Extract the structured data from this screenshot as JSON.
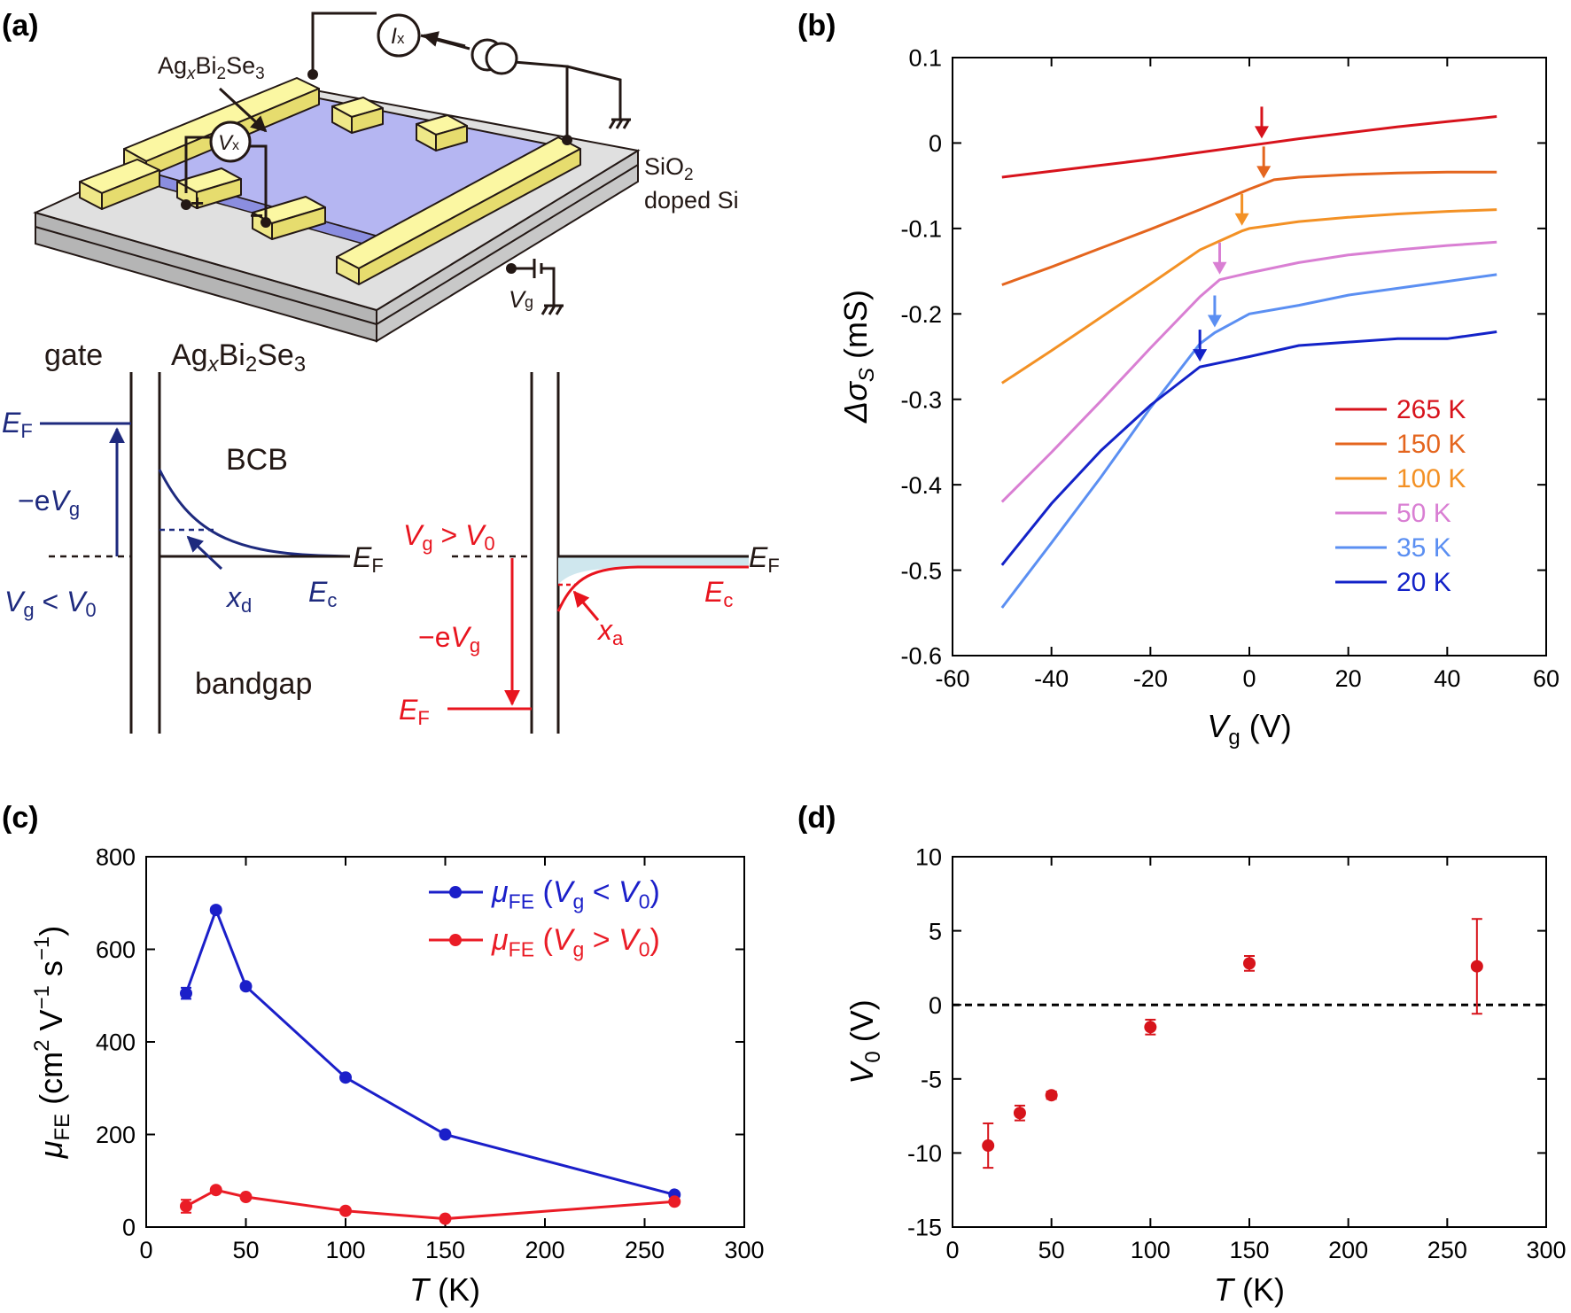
{
  "panel_labels": [
    "(a)",
    "(b)",
    "(c)",
    "(d)"
  ],
  "diagram": {
    "material": "AgₓBi₂Se₃",
    "material_parts": [
      "Ag",
      "x",
      "Bi",
      "2",
      "Se",
      "3"
    ],
    "sio2": "SiO₂",
    "sio2_parts": [
      "SiO",
      "2"
    ],
    "doped_si": "doped Si",
    "ix": "Ix",
    "ix_parts": [
      "I",
      "x"
    ],
    "vx": "Vx",
    "vx_parts": [
      "V",
      "x"
    ],
    "vg": "Vg",
    "vg_parts": [
      "V",
      "g"
    ],
    "plus": "+",
    "minus": "−",
    "gate": "gate",
    "bcb": "BCB",
    "bandgap": "bandgap",
    "ef": "EF",
    "ef_parts": [
      "E",
      "F"
    ],
    "ec": "Ec",
    "ec_parts": [
      "E",
      "c"
    ],
    "neg_evg": "−eVg",
    "neg_evg_parts": [
      "−e",
      "V",
      "g"
    ],
    "vg_lt_v0": "Vg < V0",
    "vg_lt_v0_parts": [
      "V",
      "g",
      " < ",
      "V",
      "0"
    ],
    "vg_gt_v0": "Vg > V0",
    "vg_gt_v0_parts": [
      "V",
      "g",
      " > ",
      "V",
      "0"
    ],
    "xd": "xd",
    "xd_parts": [
      "x",
      "d"
    ],
    "xa": "xa",
    "xa_parts": [
      "x",
      "a"
    ],
    "colors": {
      "accumulation": "#e8141e",
      "depletion": "#1e2a7e",
      "film": "#b5b6f2",
      "electrode": "#fbf7a2",
      "substrate": "#d7d7d7",
      "charge": "#cfe7ee"
    }
  },
  "chart_data": [
    {
      "id": "b",
      "type": "line",
      "xlabel": "Vg (V)",
      "xlabel_parts": [
        "V",
        "g",
        " (V)"
      ],
      "ylabel": "Δσs (mS)",
      "ylabel_parts": [
        "Δσ",
        "S",
        " (mS)"
      ],
      "xlim": [
        -60,
        60
      ],
      "ylim": [
        -0.6,
        0.1
      ],
      "xticks": [
        -60,
        -40,
        -20,
        0,
        20,
        40,
        60
      ],
      "xtick_labels": [
        "-60",
        "-40",
        "-20",
        "0",
        "20",
        "40",
        "60"
      ],
      "yticks": [
        -0.6,
        -0.5,
        -0.4,
        -0.3,
        -0.2,
        -0.1,
        0,
        0.1
      ],
      "ytick_labels": [
        "-0.6",
        "-0.5",
        "-0.4",
        "-0.3",
        "-0.2",
        "-0.1",
        "0",
        "0.1"
      ],
      "legend_position": "bottom-right",
      "series": [
        {
          "name": "265 K",
          "color": "#d7131c",
          "x": [
            -50,
            -40,
            -30,
            -20,
            -10,
            0,
            10,
            20,
            30,
            40,
            50
          ],
          "y": [
            -0.04,
            -0.033,
            -0.026,
            -0.019,
            -0.011,
            -0.003,
            0.005,
            0.012,
            0.019,
            0.025,
            0.031
          ],
          "marker_x": 2.5
        },
        {
          "name": "150 K",
          "color": "#e4651e",
          "x": [
            -50,
            -40,
            -30,
            -20,
            -10,
            0,
            5,
            10,
            20,
            30,
            40,
            50
          ],
          "y": [
            -0.166,
            -0.145,
            -0.123,
            -0.101,
            -0.078,
            -0.054,
            -0.043,
            -0.04,
            -0.037,
            -0.035,
            -0.034,
            -0.034
          ],
          "marker_x": 2.9
        },
        {
          "name": "100 K",
          "color": "#f39125",
          "x": [
            -50,
            -40,
            -30,
            -20,
            -10,
            -1.5,
            0,
            10,
            20,
            30,
            40,
            50
          ],
          "y": [
            -0.281,
            -0.243,
            -0.204,
            -0.165,
            -0.125,
            -0.103,
            -0.1,
            -0.092,
            -0.087,
            -0.083,
            -0.08,
            -0.078
          ],
          "marker_x": -1.5
        },
        {
          "name": "50 K",
          "color": "#d97fd3",
          "x": [
            -50,
            -40,
            -30,
            -20,
            -10,
            -6,
            0,
            10,
            20,
            30,
            40,
            50
          ],
          "y": [
            -0.42,
            -0.362,
            -0.302,
            -0.24,
            -0.18,
            -0.16,
            -0.152,
            -0.14,
            -0.131,
            -0.125,
            -0.12,
            -0.116
          ],
          "marker_x": -6
        },
        {
          "name": "35 K",
          "color": "#5b8ff2",
          "x": [
            -50,
            -40,
            -30,
            -20,
            -10,
            -7,
            0,
            10,
            20,
            30,
            40,
            50
          ],
          "y": [
            -0.544,
            -0.468,
            -0.391,
            -0.31,
            -0.235,
            -0.222,
            -0.2,
            -0.19,
            -0.178,
            -0.17,
            -0.162,
            -0.154
          ],
          "marker_x": -7
        },
        {
          "name": "20 K",
          "color": "#1322c8",
          "x": [
            -50,
            -40,
            -30,
            -20,
            -10,
            0,
            10,
            20,
            30,
            40,
            50
          ],
          "y": [
            -0.494,
            -0.422,
            -0.36,
            -0.307,
            -0.262,
            -0.25,
            -0.237,
            -0.233,
            -0.229,
            -0.229,
            -0.221
          ],
          "marker_x": -10
        }
      ]
    },
    {
      "id": "c",
      "type": "line",
      "xlabel": "T (K)",
      "xlabel_parts": [
        "T",
        " (K)"
      ],
      "ylabel": "μFE (cm² V⁻¹ s⁻¹)",
      "ylabel_parts": [
        "μ",
        "FE",
        " (cm",
        "2",
        " V",
        "−1",
        " s",
        "−1",
        ")"
      ],
      "xlim": [
        0,
        300
      ],
      "ylim": [
        0,
        800
      ],
      "xticks": [
        0,
        50,
        100,
        150,
        200,
        250,
        300
      ],
      "xtick_labels": [
        "0",
        "50",
        "100",
        "150",
        "200",
        "250",
        "300"
      ],
      "yticks": [
        0,
        200,
        400,
        600,
        800
      ],
      "ytick_labels": [
        "0",
        "200",
        "400",
        "600",
        "800"
      ],
      "legend_position": "top-right",
      "series": [
        {
          "name": "μFE (Vg < V0)",
          "name_parts": [
            "μ",
            "FE",
            " (",
            "V",
            "g",
            " < ",
            "V",
            "0",
            ")"
          ],
          "color": "#1b1fc9",
          "x": [
            20,
            35,
            50,
            100,
            150,
            265
          ],
          "y": [
            505,
            685,
            520,
            323,
            200,
            70
          ],
          "yerr": [
            12,
            6,
            6,
            5,
            4,
            3
          ]
        },
        {
          "name": "μFE (Vg > V0)",
          "name_parts": [
            "μ",
            "FE",
            " (",
            "V",
            "g",
            " > ",
            "V",
            "0",
            ")"
          ],
          "color": "#ea1c26",
          "x": [
            20,
            35,
            50,
            100,
            150,
            265
          ],
          "y": [
            45,
            80,
            65,
            35,
            18,
            55
          ],
          "yerr": [
            14,
            5,
            5,
            4,
            3,
            4
          ]
        }
      ]
    },
    {
      "id": "d",
      "type": "scatter",
      "xlabel": "T (K)",
      "xlabel_parts": [
        "T",
        " (K)"
      ],
      "ylabel": "V0 (V)",
      "ylabel_parts": [
        "V",
        "0",
        " (V)"
      ],
      "xlim": [
        0,
        300
      ],
      "ylim": [
        -15,
        10
      ],
      "xticks": [
        0,
        50,
        100,
        150,
        200,
        250,
        300
      ],
      "xtick_labels": [
        "0",
        "50",
        "100",
        "150",
        "200",
        "250",
        "300"
      ],
      "yticks": [
        -15,
        -10,
        -5,
        0,
        5,
        10
      ],
      "ytick_labels": [
        "-15",
        "-10",
        "-5",
        "0",
        "5",
        "10"
      ],
      "reference_line_y": 0,
      "series": [
        {
          "color": "#d7141b",
          "x": [
            18,
            34,
            50,
            100,
            150,
            265
          ],
          "y": [
            -9.5,
            -7.3,
            -6.1,
            -1.5,
            2.8,
            2.6
          ],
          "yerr": [
            1.5,
            0.5,
            0.25,
            0.5,
            0.5,
            3.2
          ]
        }
      ]
    }
  ]
}
